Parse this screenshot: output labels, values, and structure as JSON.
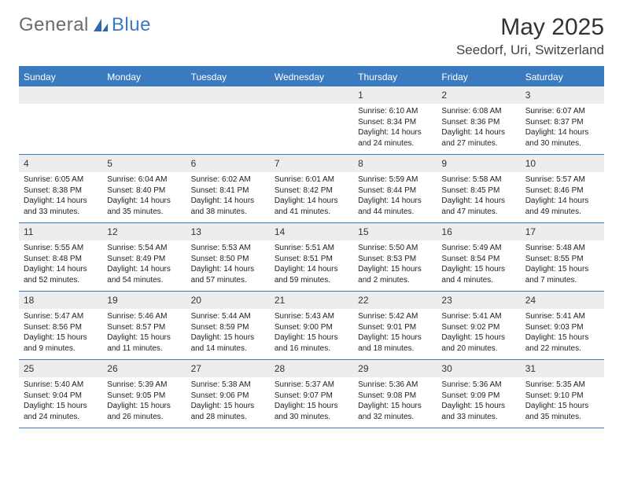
{
  "logo": {
    "text_a": "General",
    "text_b": "Blue"
  },
  "title": "May 2025",
  "location": "Seedorf, Uri, Switzerland",
  "dow": [
    "Sunday",
    "Monday",
    "Tuesday",
    "Wednesday",
    "Thursday",
    "Friday",
    "Saturday"
  ],
  "colors": {
    "accent": "#3a7abf",
    "header_text": "#ffffff",
    "daynum_bg": "#ededed",
    "text": "#222222",
    "page_bg": "#ffffff"
  },
  "weeks": [
    [
      {
        "n": "",
        "sr": "",
        "ss": "",
        "dl": ""
      },
      {
        "n": "",
        "sr": "",
        "ss": "",
        "dl": ""
      },
      {
        "n": "",
        "sr": "",
        "ss": "",
        "dl": ""
      },
      {
        "n": "",
        "sr": "",
        "ss": "",
        "dl": ""
      },
      {
        "n": "1",
        "sr": "Sunrise: 6:10 AM",
        "ss": "Sunset: 8:34 PM",
        "dl": "Daylight: 14 hours and 24 minutes."
      },
      {
        "n": "2",
        "sr": "Sunrise: 6:08 AM",
        "ss": "Sunset: 8:36 PM",
        "dl": "Daylight: 14 hours and 27 minutes."
      },
      {
        "n": "3",
        "sr": "Sunrise: 6:07 AM",
        "ss": "Sunset: 8:37 PM",
        "dl": "Daylight: 14 hours and 30 minutes."
      }
    ],
    [
      {
        "n": "4",
        "sr": "Sunrise: 6:05 AM",
        "ss": "Sunset: 8:38 PM",
        "dl": "Daylight: 14 hours and 33 minutes."
      },
      {
        "n": "5",
        "sr": "Sunrise: 6:04 AM",
        "ss": "Sunset: 8:40 PM",
        "dl": "Daylight: 14 hours and 35 minutes."
      },
      {
        "n": "6",
        "sr": "Sunrise: 6:02 AM",
        "ss": "Sunset: 8:41 PM",
        "dl": "Daylight: 14 hours and 38 minutes."
      },
      {
        "n": "7",
        "sr": "Sunrise: 6:01 AM",
        "ss": "Sunset: 8:42 PM",
        "dl": "Daylight: 14 hours and 41 minutes."
      },
      {
        "n": "8",
        "sr": "Sunrise: 5:59 AM",
        "ss": "Sunset: 8:44 PM",
        "dl": "Daylight: 14 hours and 44 minutes."
      },
      {
        "n": "9",
        "sr": "Sunrise: 5:58 AM",
        "ss": "Sunset: 8:45 PM",
        "dl": "Daylight: 14 hours and 47 minutes."
      },
      {
        "n": "10",
        "sr": "Sunrise: 5:57 AM",
        "ss": "Sunset: 8:46 PM",
        "dl": "Daylight: 14 hours and 49 minutes."
      }
    ],
    [
      {
        "n": "11",
        "sr": "Sunrise: 5:55 AM",
        "ss": "Sunset: 8:48 PM",
        "dl": "Daylight: 14 hours and 52 minutes."
      },
      {
        "n": "12",
        "sr": "Sunrise: 5:54 AM",
        "ss": "Sunset: 8:49 PM",
        "dl": "Daylight: 14 hours and 54 minutes."
      },
      {
        "n": "13",
        "sr": "Sunrise: 5:53 AM",
        "ss": "Sunset: 8:50 PM",
        "dl": "Daylight: 14 hours and 57 minutes."
      },
      {
        "n": "14",
        "sr": "Sunrise: 5:51 AM",
        "ss": "Sunset: 8:51 PM",
        "dl": "Daylight: 14 hours and 59 minutes."
      },
      {
        "n": "15",
        "sr": "Sunrise: 5:50 AM",
        "ss": "Sunset: 8:53 PM",
        "dl": "Daylight: 15 hours and 2 minutes."
      },
      {
        "n": "16",
        "sr": "Sunrise: 5:49 AM",
        "ss": "Sunset: 8:54 PM",
        "dl": "Daylight: 15 hours and 4 minutes."
      },
      {
        "n": "17",
        "sr": "Sunrise: 5:48 AM",
        "ss": "Sunset: 8:55 PM",
        "dl": "Daylight: 15 hours and 7 minutes."
      }
    ],
    [
      {
        "n": "18",
        "sr": "Sunrise: 5:47 AM",
        "ss": "Sunset: 8:56 PM",
        "dl": "Daylight: 15 hours and 9 minutes."
      },
      {
        "n": "19",
        "sr": "Sunrise: 5:46 AM",
        "ss": "Sunset: 8:57 PM",
        "dl": "Daylight: 15 hours and 11 minutes."
      },
      {
        "n": "20",
        "sr": "Sunrise: 5:44 AM",
        "ss": "Sunset: 8:59 PM",
        "dl": "Daylight: 15 hours and 14 minutes."
      },
      {
        "n": "21",
        "sr": "Sunrise: 5:43 AM",
        "ss": "Sunset: 9:00 PM",
        "dl": "Daylight: 15 hours and 16 minutes."
      },
      {
        "n": "22",
        "sr": "Sunrise: 5:42 AM",
        "ss": "Sunset: 9:01 PM",
        "dl": "Daylight: 15 hours and 18 minutes."
      },
      {
        "n": "23",
        "sr": "Sunrise: 5:41 AM",
        "ss": "Sunset: 9:02 PM",
        "dl": "Daylight: 15 hours and 20 minutes."
      },
      {
        "n": "24",
        "sr": "Sunrise: 5:41 AM",
        "ss": "Sunset: 9:03 PM",
        "dl": "Daylight: 15 hours and 22 minutes."
      }
    ],
    [
      {
        "n": "25",
        "sr": "Sunrise: 5:40 AM",
        "ss": "Sunset: 9:04 PM",
        "dl": "Daylight: 15 hours and 24 minutes."
      },
      {
        "n": "26",
        "sr": "Sunrise: 5:39 AM",
        "ss": "Sunset: 9:05 PM",
        "dl": "Daylight: 15 hours and 26 minutes."
      },
      {
        "n": "27",
        "sr": "Sunrise: 5:38 AM",
        "ss": "Sunset: 9:06 PM",
        "dl": "Daylight: 15 hours and 28 minutes."
      },
      {
        "n": "28",
        "sr": "Sunrise: 5:37 AM",
        "ss": "Sunset: 9:07 PM",
        "dl": "Daylight: 15 hours and 30 minutes."
      },
      {
        "n": "29",
        "sr": "Sunrise: 5:36 AM",
        "ss": "Sunset: 9:08 PM",
        "dl": "Daylight: 15 hours and 32 minutes."
      },
      {
        "n": "30",
        "sr": "Sunrise: 5:36 AM",
        "ss": "Sunset: 9:09 PM",
        "dl": "Daylight: 15 hours and 33 minutes."
      },
      {
        "n": "31",
        "sr": "Sunrise: 5:35 AM",
        "ss": "Sunset: 9:10 PM",
        "dl": "Daylight: 15 hours and 35 minutes."
      }
    ]
  ]
}
